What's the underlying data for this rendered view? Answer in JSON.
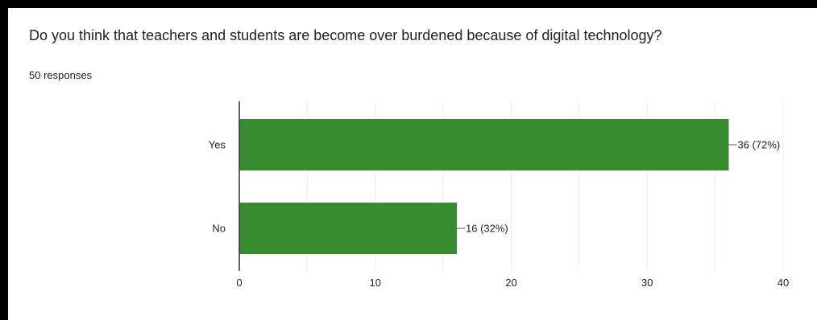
{
  "question": "Do you think that teachers and students are become over burdened because of digital technology?",
  "response_count": "50 responses",
  "colors": {
    "bar": "#3a8c30",
    "grid": "#ececec",
    "axis": "#333333"
  },
  "chart_data": {
    "type": "bar",
    "orientation": "horizontal",
    "categories": [
      "Yes",
      "No"
    ],
    "values": [
      36,
      16
    ],
    "data_labels": [
      "36 (72%)",
      "16 (32%)"
    ],
    "xlim": [
      0,
      40
    ],
    "xticks": [
      0,
      10,
      20,
      30,
      40
    ],
    "grid": true,
    "legend": "none",
    "title": "Do you think that teachers and students are become over burdened because of digital technology?"
  }
}
